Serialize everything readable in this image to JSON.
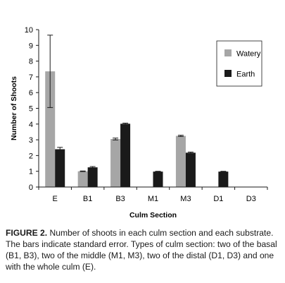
{
  "chart_data": {
    "type": "bar",
    "title": "",
    "xlabel": "Culm Section",
    "ylabel": "Number of Shoots",
    "categories": [
      "E",
      "B1",
      "B3",
      "M1",
      "M3",
      "D1",
      "D3"
    ],
    "ylim": [
      0,
      10
    ],
    "yticks": [
      "0",
      "1",
      "2",
      "3",
      "4",
      "5",
      "6",
      "7",
      "8",
      "9",
      "10"
    ],
    "grid": false,
    "legend_position": "top-right",
    "series": [
      {
        "name": "Watery",
        "color": "#a6a6a6",
        "values": [
          7.35,
          1.0,
          3.05,
          null,
          3.25,
          null,
          null
        ],
        "errors": [
          2.3,
          0.02,
          0.06,
          null,
          0.04,
          null,
          null
        ]
      },
      {
        "name": "Earth",
        "color": "#1a1a1a",
        "values": [
          2.4,
          1.25,
          4.02,
          0.98,
          2.18,
          0.98,
          null
        ],
        "errors": [
          0.12,
          0.05,
          0.04,
          0.02,
          0.04,
          0.02,
          null
        ]
      }
    ]
  },
  "caption": {
    "label": "FIGURE 2.",
    "text": "Number of shoots in each culm section and each substrate. The bars indicate standard error. Types of culm section: two of the basal (B1, B3), two of the middle (M1, M3), two of the distal (D1, D3) and one with the whole culm (E)."
  }
}
